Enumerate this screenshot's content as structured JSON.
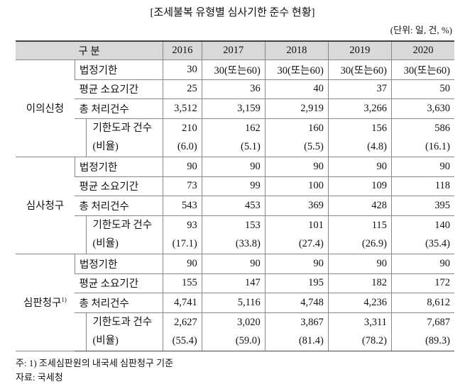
{
  "title": "[조세불복 유형별 심사기한 준수 현황]",
  "unit": "(단위: 일, 건, %)",
  "table": {
    "header": [
      "구 분",
      "2016",
      "2017",
      "2018",
      "2019",
      "2020"
    ],
    "groups": [
      {
        "label": "이의신청",
        "rows": [
          {
            "label": "법정기한",
            "values": [
              "30",
              "30(또는60)",
              "30(또는60)",
              "30(또는60)",
              "30(또는60)"
            ]
          },
          {
            "label": "평균 소요기간",
            "values": [
              "25",
              "36",
              "40",
              "37",
              "50"
            ]
          },
          {
            "label": "총 처리건수",
            "values": [
              "3,512",
              "3,159",
              "2,919",
              "3,266",
              "3,630"
            ]
          },
          {
            "label": "기한도과 건수",
            "values": [
              "210",
              "162",
              "160",
              "156",
              "586"
            ]
          },
          {
            "label": "(비율)",
            "values": [
              "(6.0)",
              "(5.1)",
              "(5.5)",
              "(4.8)",
              "(16.1)"
            ]
          }
        ]
      },
      {
        "label": "심사청구",
        "rows": [
          {
            "label": "법정기한",
            "values": [
              "90",
              "90",
              "90",
              "90",
              "90"
            ]
          },
          {
            "label": "평균 소요기간",
            "values": [
              "73",
              "99",
              "100",
              "109",
              "118"
            ]
          },
          {
            "label": "총 처리건수",
            "values": [
              "543",
              "453",
              "369",
              "428",
              "395"
            ]
          },
          {
            "label": "기한도과 건수",
            "values": [
              "93",
              "153",
              "101",
              "115",
              "140"
            ]
          },
          {
            "label": "(비율)",
            "values": [
              "(17.1)",
              "(33.8)",
              "(27.4)",
              "(26.9)",
              "(35.4)"
            ]
          }
        ]
      },
      {
        "label": "심판청구",
        "note_mark": "1)",
        "rows": [
          {
            "label": "법정기한",
            "values": [
              "90",
              "90",
              "90",
              "90",
              "90"
            ]
          },
          {
            "label": "평균 소요기간",
            "values": [
              "155",
              "147",
              "195",
              "182",
              "172"
            ]
          },
          {
            "label": "총 처리건수",
            "values": [
              "4,741",
              "5,116",
              "4,748",
              "4,236",
              "8,612"
            ]
          },
          {
            "label": "기한도과 건수",
            "values": [
              "2,627",
              "3,020",
              "3,867",
              "3,311",
              "7,687"
            ]
          },
          {
            "label": "(비율)",
            "values": [
              "(55.4)",
              "(59.0)",
              "(81.4)",
              "(78.2)",
              "(89.3)"
            ]
          }
        ]
      }
    ]
  },
  "notes": [
    "주: 1) 조세심판원의 내국세 심판청구 기준",
    "자료: 국세청"
  ]
}
